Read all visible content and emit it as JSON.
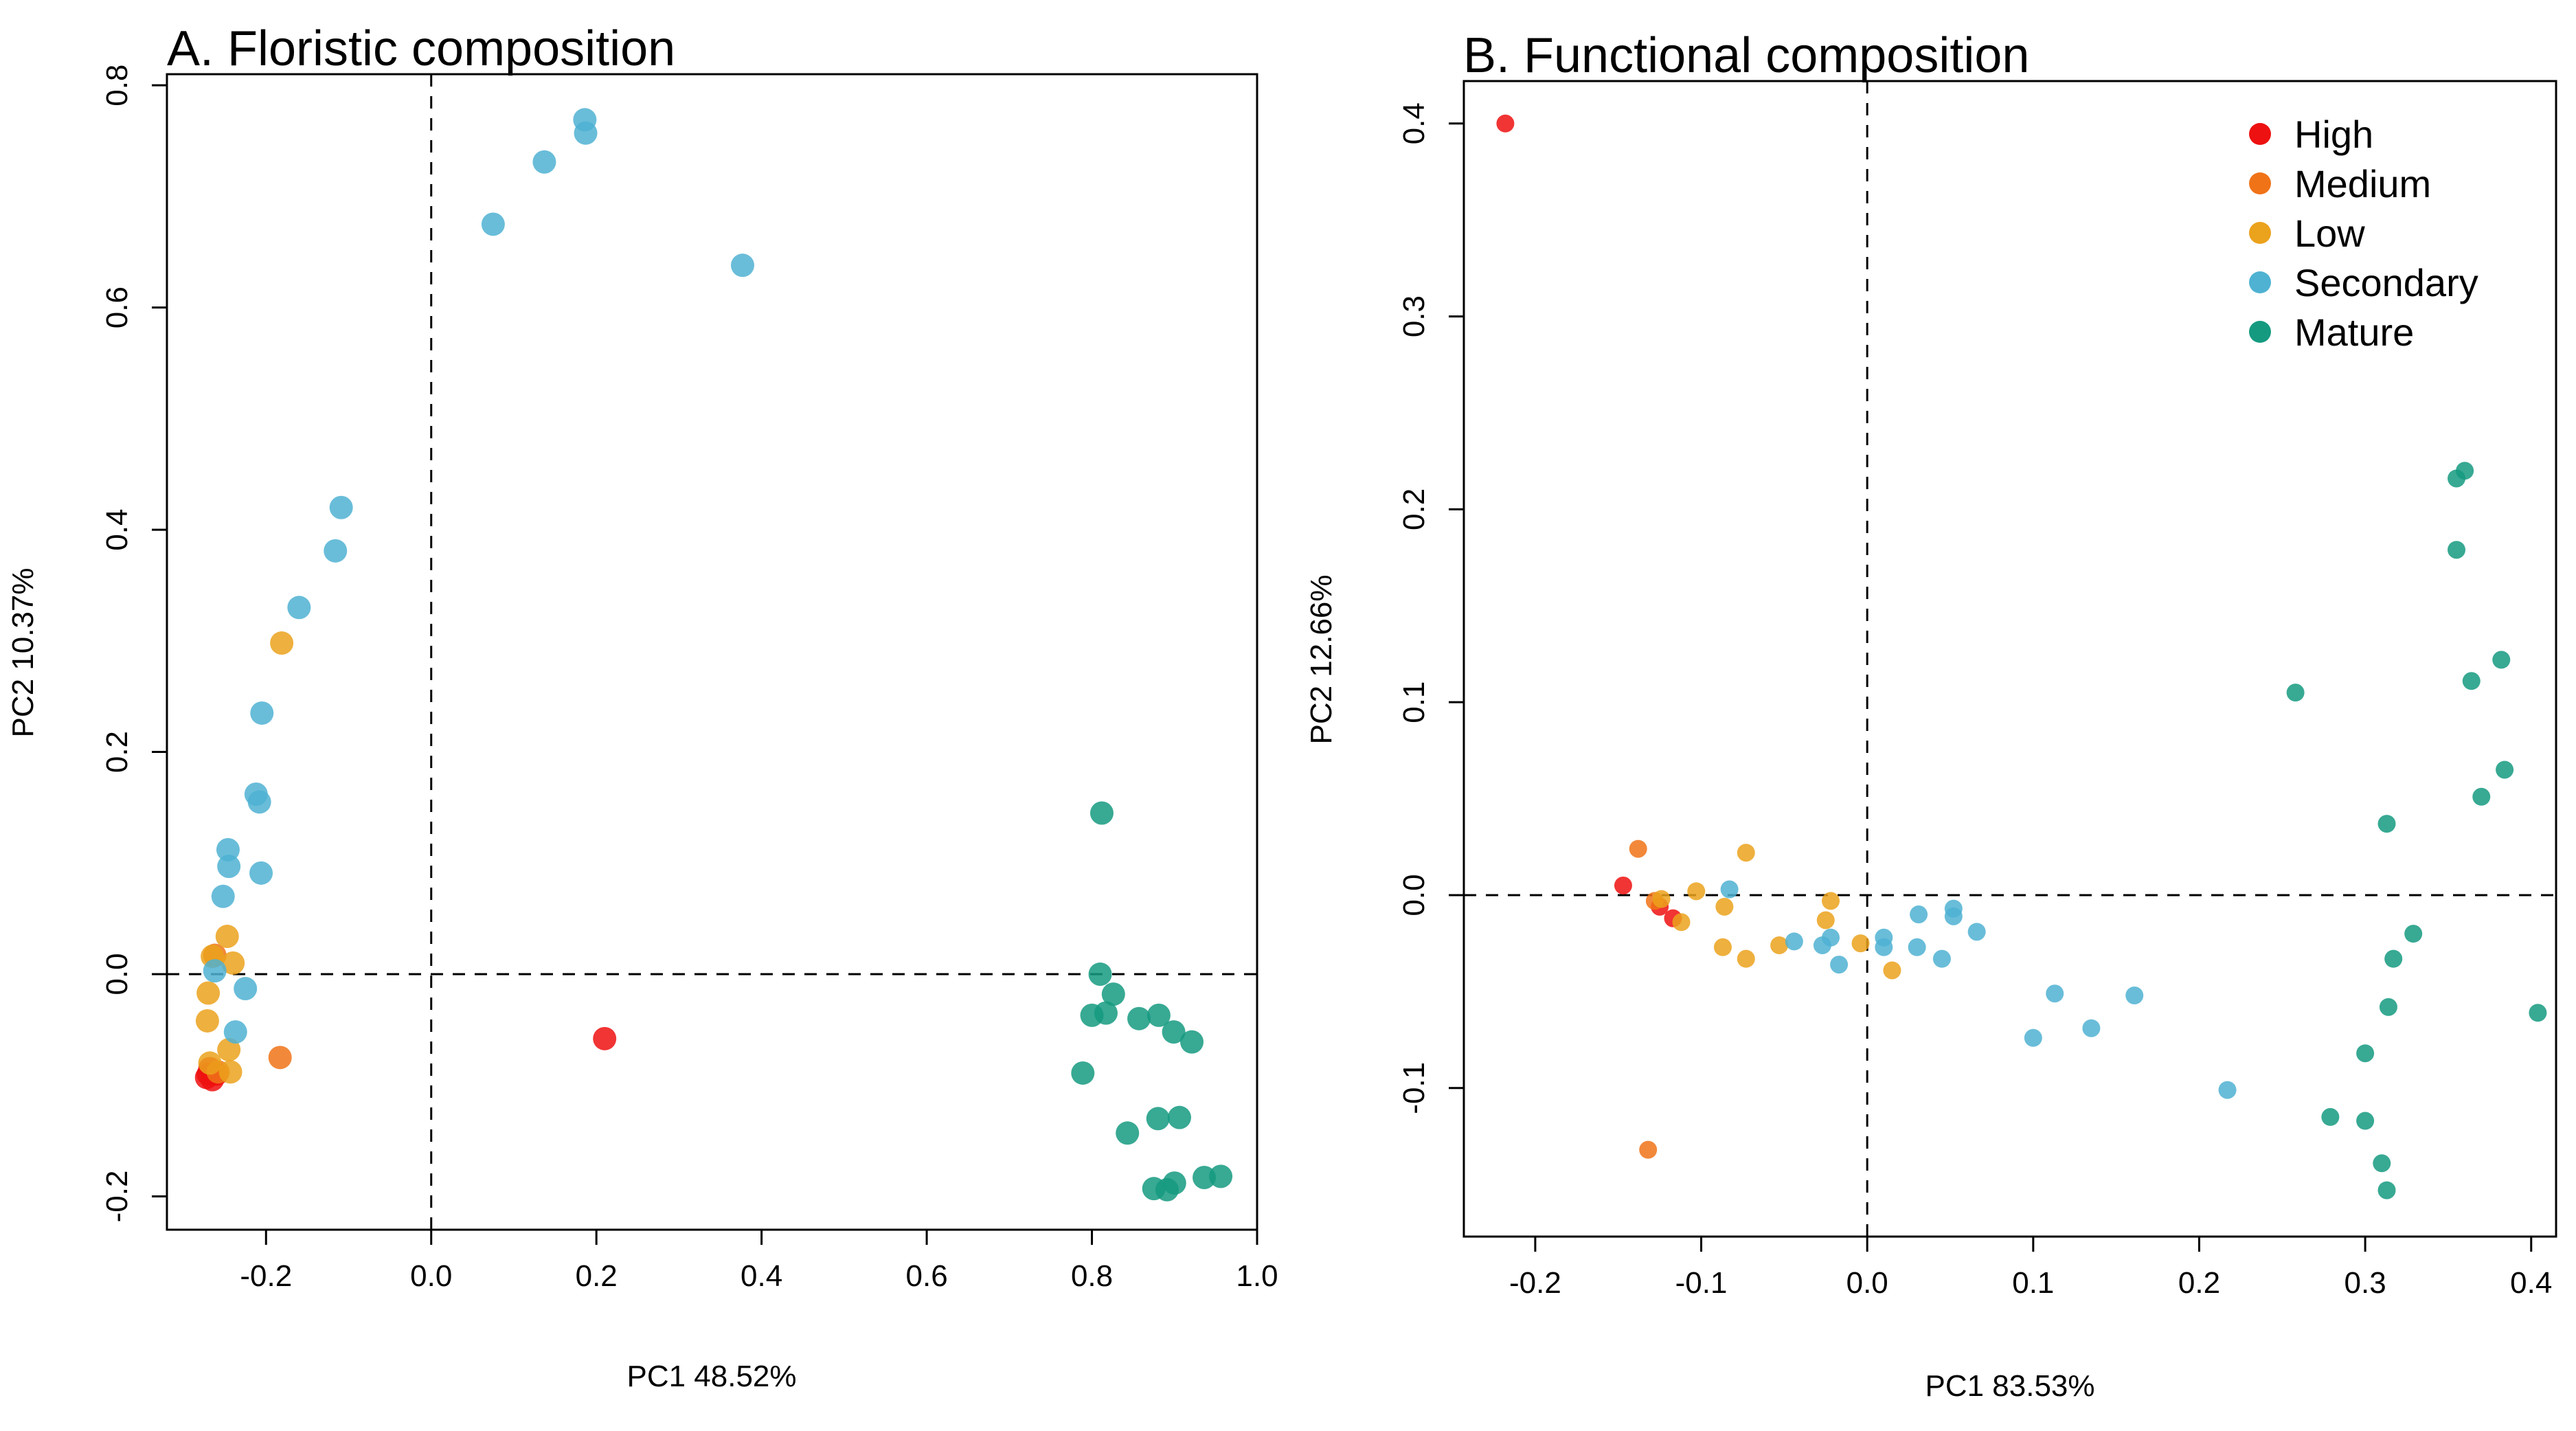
{
  "colors": {
    "High": "#EE1111",
    "Medium": "#F07318",
    "Low": "#EBA21C",
    "Secondary": "#4FB2D2",
    "Mature": "#159A80"
  },
  "chart_data": [
    {
      "type": "scatter",
      "title": "A. Floristic composition",
      "xlabel": "PC1 48.52%",
      "ylabel": "PC2 10.37%",
      "xlim": [
        -0.32,
        1.0
      ],
      "ylim": [
        -0.23,
        0.81
      ],
      "xticks": [
        -0.2,
        0.0,
        0.2,
        0.4,
        0.6,
        0.8,
        1.0
      ],
      "xtick_labels": [
        "-0.2",
        "0.0",
        "0.2",
        "0.4",
        "0.6",
        "0.8",
        "1.0"
      ],
      "yticks": [
        -0.2,
        0.0,
        0.2,
        0.4,
        0.6,
        0.8
      ],
      "ytick_labels": [
        "-0.2",
        "0.0",
        "0.2",
        "0.4",
        "0.6",
        "0.8"
      ],
      "reference_lines": {
        "x": 0,
        "y": 0
      },
      "legend": false,
      "series": [
        {
          "name": "High",
          "points": [
            [
              0.21,
              -0.058
            ],
            [
              -0.27,
              -0.09
            ],
            [
              -0.265,
              -0.095
            ],
            [
              -0.26,
              -0.09
            ],
            [
              -0.272,
              -0.093
            ],
            [
              -0.268,
              -0.085
            ]
          ]
        },
        {
          "name": "Medium",
          "points": [
            [
              -0.183,
              -0.075
            ],
            [
              -0.262,
              0.017
            ],
            [
              -0.258,
              -0.088
            ]
          ]
        },
        {
          "name": "Low",
          "points": [
            [
              -0.181,
              0.298
            ],
            [
              -0.247,
              0.034
            ],
            [
              -0.24,
              0.01
            ],
            [
              -0.265,
              0.016
            ],
            [
              -0.27,
              -0.017
            ],
            [
              -0.271,
              -0.042
            ],
            [
              -0.245,
              -0.068
            ],
            [
              -0.243,
              -0.088
            ],
            [
              -0.268,
              -0.08
            ]
          ]
        },
        {
          "name": "Secondary",
          "points": [
            [
              0.186,
              0.769
            ],
            [
              0.187,
              0.757
            ],
            [
              0.137,
              0.731
            ],
            [
              0.075,
              0.675
            ],
            [
              0.377,
              0.638
            ],
            [
              -0.109,
              0.42
            ],
            [
              -0.116,
              0.381
            ],
            [
              -0.16,
              0.33
            ],
            [
              -0.205,
              0.235
            ],
            [
              -0.212,
              0.162
            ],
            [
              -0.208,
              0.155
            ],
            [
              -0.246,
              0.112
            ],
            [
              -0.245,
              0.097
            ],
            [
              -0.206,
              0.091
            ],
            [
              -0.252,
              0.07
            ],
            [
              -0.262,
              0.003
            ],
            [
              -0.225,
              -0.013
            ],
            [
              -0.237,
              -0.052
            ]
          ]
        },
        {
          "name": "Mature",
          "points": [
            [
              0.812,
              0.145
            ],
            [
              0.81,
              0.0
            ],
            [
              0.826,
              -0.018
            ],
            [
              0.8,
              -0.037
            ],
            [
              0.817,
              -0.035
            ],
            [
              0.857,
              -0.04
            ],
            [
              0.881,
              -0.037
            ],
            [
              0.899,
              -0.052
            ],
            [
              0.921,
              -0.061
            ],
            [
              0.789,
              -0.089
            ],
            [
              0.88,
              -0.13
            ],
            [
              0.906,
              -0.129
            ],
            [
              0.843,
              -0.143
            ],
            [
              0.936,
              -0.183
            ],
            [
              0.956,
              -0.182
            ],
            [
              0.9,
              -0.188
            ],
            [
              0.875,
              -0.193
            ],
            [
              0.891,
              -0.194
            ]
          ]
        }
      ]
    },
    {
      "type": "scatter",
      "title": "B. Functional composition",
      "xlabel": "PC1 83.53%",
      "ylabel": "PC2 12.66%",
      "xlim": [
        -0.243,
        0.415
      ],
      "ylim": [
        -0.177,
        0.422
      ],
      "xticks": [
        -0.2,
        -0.1,
        0.0,
        0.1,
        0.2,
        0.3,
        0.4
      ],
      "xtick_labels": [
        "-0.2",
        "-0.1",
        "0.0",
        "0.1",
        "0.2",
        "0.3",
        "0.4"
      ],
      "yticks": [
        -0.1,
        0.0,
        0.1,
        0.2,
        0.3,
        0.4
      ],
      "ytick_labels": [
        "-0.1",
        "0.0",
        "0.1",
        "0.2",
        "0.3",
        "0.4"
      ],
      "reference_lines": {
        "x": 0,
        "y": 0
      },
      "legend": true,
      "legend_position": "top-right",
      "legend_entries": [
        "High",
        "Medium",
        "Low",
        "Secondary",
        "Mature"
      ],
      "series": [
        {
          "name": "High",
          "points": [
            [
              -0.218,
              0.4
            ],
            [
              -0.147,
              0.005
            ],
            [
              -0.125,
              -0.006
            ],
            [
              -0.117,
              -0.012
            ]
          ]
        },
        {
          "name": "Medium",
          "points": [
            [
              -0.138,
              0.024
            ],
            [
              -0.132,
              -0.132
            ],
            [
              -0.128,
              -0.003
            ]
          ]
        },
        {
          "name": "Low",
          "points": [
            [
              -0.124,
              -0.002
            ],
            [
              -0.112,
              -0.014
            ],
            [
              -0.103,
              0.002
            ],
            [
              -0.086,
              -0.006
            ],
            [
              -0.087,
              -0.027
            ],
            [
              -0.073,
              0.022
            ],
            [
              -0.073,
              -0.033
            ],
            [
              -0.053,
              -0.026
            ],
            [
              -0.022,
              -0.003
            ],
            [
              -0.025,
              -0.013
            ],
            [
              -0.004,
              -0.025
            ],
            [
              0.015,
              -0.039
            ]
          ]
        },
        {
          "name": "Secondary",
          "points": [
            [
              -0.083,
              0.003
            ],
            [
              -0.044,
              -0.024
            ],
            [
              -0.027,
              -0.026
            ],
            [
              -0.022,
              -0.022
            ],
            [
              -0.017,
              -0.036
            ],
            [
              0.01,
              -0.022
            ],
            [
              0.01,
              -0.027
            ],
            [
              0.031,
              -0.01
            ],
            [
              0.03,
              -0.027
            ],
            [
              0.045,
              -0.033
            ],
            [
              0.052,
              -0.007
            ],
            [
              0.052,
              -0.011
            ],
            [
              0.066,
              -0.019
            ],
            [
              0.1,
              -0.074
            ],
            [
              0.113,
              -0.051
            ],
            [
              0.135,
              -0.069
            ],
            [
              0.161,
              -0.052
            ],
            [
              0.217,
              -0.101
            ]
          ]
        },
        {
          "name": "Mature",
          "points": [
            [
              0.36,
              0.22
            ],
            [
              0.355,
              0.216
            ],
            [
              0.355,
              0.179
            ],
            [
              0.258,
              0.105
            ],
            [
              0.382,
              0.122
            ],
            [
              0.364,
              0.111
            ],
            [
              0.384,
              0.065
            ],
            [
              0.37,
              0.051
            ],
            [
              0.313,
              0.037
            ],
            [
              0.329,
              -0.02
            ],
            [
              0.317,
              -0.033
            ],
            [
              0.314,
              -0.058
            ],
            [
              0.404,
              -0.061
            ],
            [
              0.3,
              -0.082
            ],
            [
              0.279,
              -0.115
            ],
            [
              0.3,
              -0.117
            ],
            [
              0.31,
              -0.139
            ],
            [
              0.313,
              -0.153
            ]
          ]
        }
      ]
    }
  ]
}
